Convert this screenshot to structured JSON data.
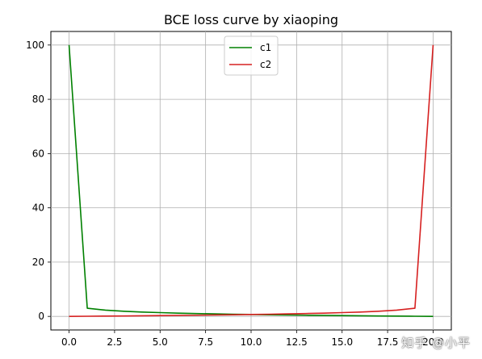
{
  "chart_data": {
    "type": "line",
    "title": "BCE loss curve by xiaoping",
    "xlabel": "",
    "ylabel": "",
    "xlim": [
      -1,
      21
    ],
    "ylim": [
      -5,
      105
    ],
    "xticks": [
      "0.0",
      "2.5",
      "5.0",
      "7.5",
      "10.0",
      "12.5",
      "15.0",
      "17.5",
      "20.0"
    ],
    "yticks": [
      "0",
      "20",
      "40",
      "60",
      "80",
      "100"
    ],
    "grid": true,
    "legend_position": "top-center",
    "series": [
      {
        "name": "c1",
        "color": "#008000",
        "x": [
          0,
          1,
          2,
          3,
          4,
          5,
          6,
          7,
          8,
          9,
          10,
          11,
          12,
          13,
          14,
          15,
          16,
          17,
          18,
          19,
          20
        ],
        "y": [
          100,
          3.0,
          2.3,
          1.9,
          1.6,
          1.39,
          1.2,
          1.05,
          0.92,
          0.8,
          0.69,
          0.6,
          0.51,
          0.43,
          0.36,
          0.29,
          0.22,
          0.16,
          0.11,
          0.05,
          0.0
        ]
      },
      {
        "name": "c2",
        "color": "#d62020",
        "x": [
          0,
          1,
          2,
          3,
          4,
          5,
          6,
          7,
          8,
          9,
          10,
          11,
          12,
          13,
          14,
          15,
          16,
          17,
          18,
          19,
          20
        ],
        "y": [
          0.0,
          0.05,
          0.11,
          0.16,
          0.22,
          0.29,
          0.36,
          0.43,
          0.51,
          0.6,
          0.69,
          0.8,
          0.92,
          1.05,
          1.2,
          1.39,
          1.6,
          1.9,
          2.3,
          3.0,
          100
        ]
      }
    ]
  },
  "watermark": "知乎 @小平"
}
